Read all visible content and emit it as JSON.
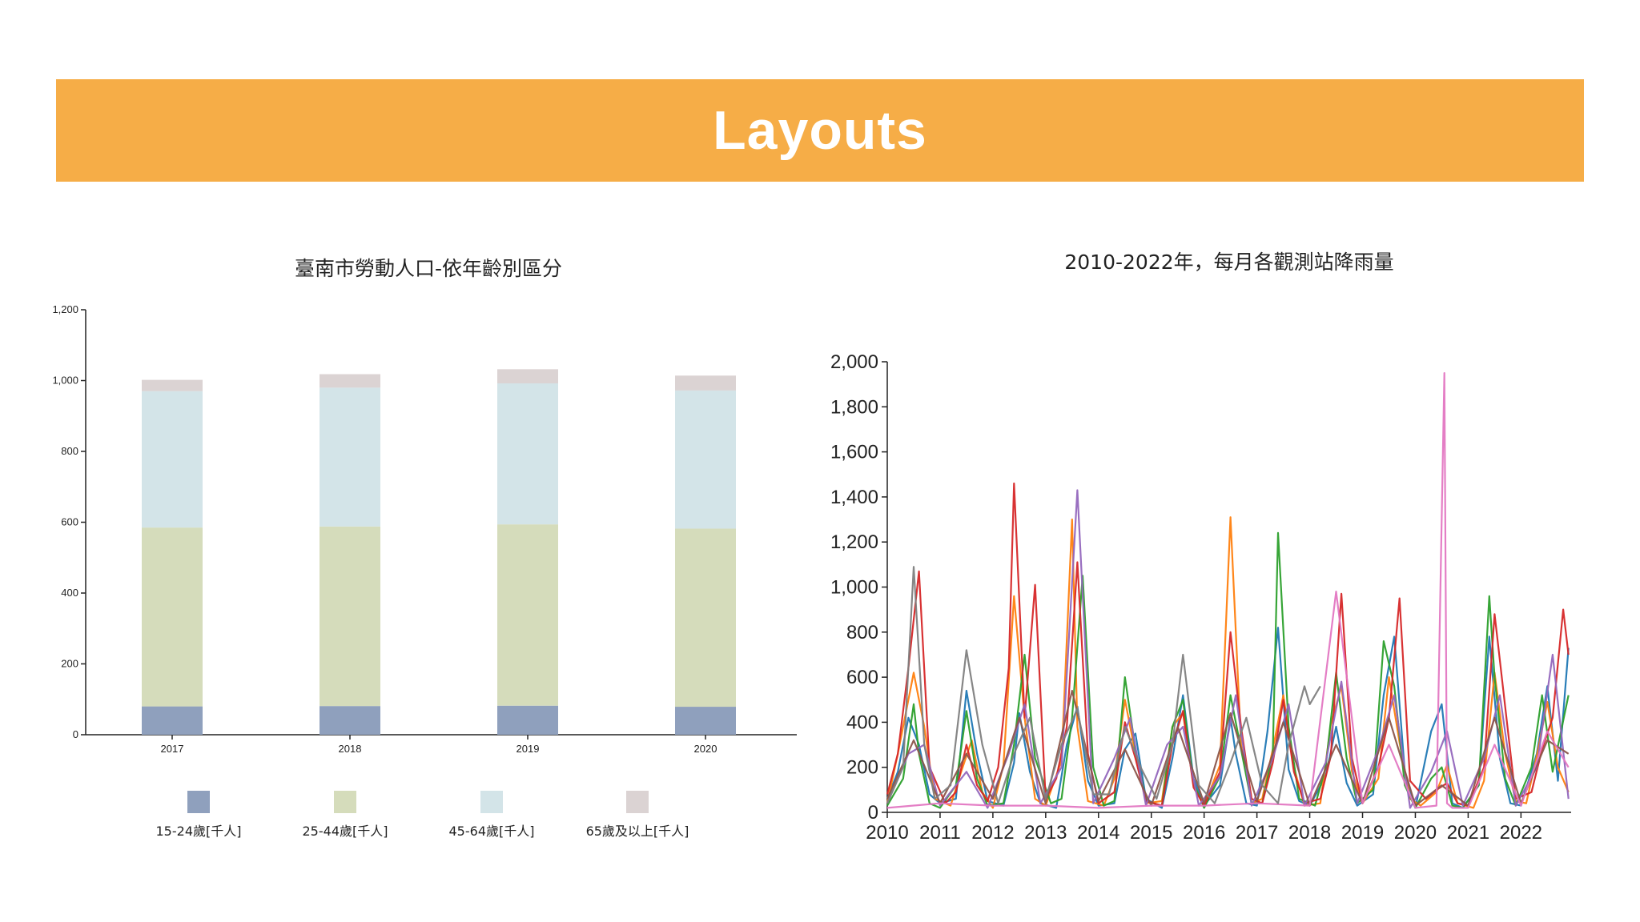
{
  "slide": {
    "title": "Layouts",
    "banner_color": "#f6ad47"
  },
  "chart_data": [
    {
      "type": "bar",
      "stacked": true,
      "title": "臺南市勞動人口-依年齡別區分",
      "xlabel": "",
      "ylabel": "",
      "categories": [
        "2017",
        "2018",
        "2019",
        "2020"
      ],
      "ylim": [
        0,
        1200
      ],
      "yticks": [
        0,
        200,
        400,
        600,
        800,
        1000,
        1200
      ],
      "ytick_labels": [
        "0",
        "200",
        "400",
        "600",
        "800",
        "1,000",
        "1,200"
      ],
      "legend_position": "bottom",
      "series": [
        {
          "name": "15-24歲[千人]",
          "color": "#8fa0bd",
          "values": [
            80,
            81,
            82,
            79
          ]
        },
        {
          "name": "25-44歲[千人]",
          "color": "#d5dcbb",
          "values": [
            505,
            507,
            512,
            503
          ]
        },
        {
          "name": "45-64歲[千人]",
          "color": "#d3e4e8",
          "values": [
            385,
            392,
            398,
            390
          ]
        },
        {
          "name": "65歲及以上[千人]",
          "color": "#dbd3d3",
          "values": [
            32,
            38,
            40,
            42
          ]
        }
      ]
    },
    {
      "type": "line",
      "title": "2010-2022年，每月各觀測站降雨量",
      "xlabel": "",
      "ylabel": "",
      "xlim": [
        2010,
        2022.95
      ],
      "ylim": [
        0,
        2000
      ],
      "xticks": [
        "2010",
        "2011",
        "2012",
        "2013",
        "2014",
        "2015",
        "2016",
        "2017",
        "2018",
        "2019",
        "2020",
        "2021",
        "2022"
      ],
      "yticks": [
        0,
        200,
        400,
        600,
        800,
        1000,
        1200,
        1400,
        1600,
        1800,
        2000
      ],
      "ytick_labels": [
        "0",
        "200",
        "400",
        "600",
        "800",
        "1,000",
        "1,200",
        "1,400",
        "1,600",
        "1,800",
        "2,000"
      ],
      "grid": false,
      "legend": "none",
      "series": [
        {
          "color": "#1f77b4",
          "x": [
            2010.0,
            2010.2,
            2010.4,
            2010.6,
            2010.8,
            2011.0,
            2011.3,
            2011.5,
            2011.7,
            2011.9,
            2012.2,
            2012.4,
            2012.5,
            2012.7,
            2012.9,
            2013.2,
            2013.4,
            2013.6,
            2013.8,
            2014.0,
            2014.3,
            2014.5,
            2014.7,
            2014.9,
            2015.2,
            2015.4,
            2015.6,
            2015.8,
            2016.0,
            2016.3,
            2016.5,
            2016.6,
            2016.8,
            2017.0,
            2017.2,
            2017.4,
            2017.6,
            2017.8,
            2018.0,
            2018.3,
            2018.5,
            2018.7,
            2018.9,
            2019.2,
            2019.4,
            2019.6,
            2019.8,
            2020.0,
            2020.3,
            2020.5,
            2020.7,
            2020.9,
            2021.2,
            2021.4,
            2021.6,
            2021.8,
            2022.0,
            2022.3,
            2022.5,
            2022.7,
            2022.9
          ],
          "y": [
            60,
            180,
            420,
            300,
            80,
            40,
            60,
            540,
            260,
            50,
            30,
            220,
            440,
            180,
            40,
            20,
            300,
            470,
            140,
            30,
            40,
            280,
            350,
            60,
            20,
            240,
            520,
            150,
            30,
            120,
            420,
            260,
            40,
            30,
            360,
            820,
            190,
            50,
            30,
            160,
            380,
            130,
            30,
            80,
            520,
            780,
            180,
            20,
            360,
            480,
            40,
            20,
            120,
            780,
            240,
            40,
            30,
            260,
            560,
            140,
            730
          ]
        },
        {
          "color": "#ff7f0e",
          "x": [
            2010.0,
            2010.2,
            2010.5,
            2010.7,
            2010.9,
            2011.2,
            2011.4,
            2011.6,
            2011.8,
            2012.0,
            2012.2,
            2012.4,
            2012.6,
            2012.8,
            2013.0,
            2013.3,
            2013.5,
            2013.6,
            2013.8,
            2014.1,
            2014.3,
            2014.5,
            2014.7,
            2014.9,
            2015.2,
            2015.4,
            2015.6,
            2015.8,
            2016.0,
            2016.3,
            2016.5,
            2016.7,
            2016.9,
            2017.1,
            2017.3,
            2017.5,
            2017.7,
            2017.9,
            2018.2,
            2018.4,
            2018.6,
            2018.8,
            2019.0,
            2019.3,
            2019.5,
            2019.7,
            2019.9,
            2020.1,
            2020.4,
            2020.6,
            2020.8,
            2021.1,
            2021.3,
            2021.5,
            2021.7,
            2021.9,
            2022.1,
            2022.3,
            2022.5,
            2022.7,
            2022.9
          ],
          "y": [
            40,
            260,
            620,
            380,
            60,
            30,
            180,
            320,
            90,
            20,
            210,
            960,
            420,
            60,
            30,
            230,
            1300,
            380,
            50,
            30,
            150,
            500,
            260,
            40,
            50,
            380,
            440,
            120,
            30,
            210,
            1310,
            300,
            40,
            60,
            280,
            520,
            200,
            30,
            40,
            390,
            560,
            180,
            40,
            150,
            600,
            310,
            60,
            30,
            90,
            210,
            40,
            20,
            140,
            620,
            260,
            50,
            40,
            250,
            490,
            200,
            90
          ]
        },
        {
          "color": "#2ca02c",
          "x": [
            2010.0,
            2010.3,
            2010.5,
            2010.6,
            2010.8,
            2011.0,
            2011.3,
            2011.5,
            2011.7,
            2011.9,
            2012.2,
            2012.4,
            2012.6,
            2012.8,
            2013.1,
            2013.3,
            2013.5,
            2013.7,
            2013.9,
            2014.1,
            2014.3,
            2014.5,
            2014.7,
            2014.9,
            2015.2,
            2015.4,
            2015.6,
            2015.8,
            2016.0,
            2016.3,
            2016.5,
            2016.7,
            2016.9,
            2017.1,
            2017.3,
            2017.4,
            2017.6,
            2017.8,
            2018.1,
            2018.3,
            2018.5,
            2018.7,
            2018.9,
            2019.2,
            2019.4,
            2019.6,
            2019.8,
            2020.0,
            2020.3,
            2020.5,
            2020.7,
            2020.9,
            2021.2,
            2021.4,
            2021.5,
            2021.7,
            2021.9,
            2022.2,
            2022.4,
            2022.6,
            2022.9
          ],
          "y": [
            30,
            150,
            480,
            260,
            40,
            20,
            120,
            450,
            150,
            30,
            40,
            300,
            700,
            240,
            40,
            60,
            420,
            1050,
            200,
            30,
            50,
            600,
            280,
            50,
            30,
            380,
            500,
            130,
            20,
            160,
            520,
            280,
            40,
            40,
            260,
            1240,
            380,
            60,
            30,
            200,
            620,
            240,
            40,
            100,
            760,
            560,
            120,
            20,
            150,
            200,
            30,
            20,
            120,
            960,
            600,
            150,
            30,
            200,
            520,
            180,
            520
          ]
        },
        {
          "color": "#d62728",
          "x": [
            2010.0,
            2010.2,
            2010.4,
            2010.6,
            2010.8,
            2011.1,
            2011.3,
            2011.5,
            2011.7,
            2011.9,
            2012.1,
            2012.3,
            2012.4,
            2012.6,
            2012.8,
            2013.0,
            2013.2,
            2013.4,
            2013.6,
            2013.8,
            2014.0,
            2014.3,
            2014.5,
            2014.7,
            2014.9,
            2015.2,
            2015.4,
            2015.6,
            2015.8,
            2016.0,
            2016.3,
            2016.5,
            2016.7,
            2016.9,
            2017.1,
            2017.3,
            2017.5,
            2017.7,
            2017.9,
            2018.2,
            2018.4,
            2018.6,
            2018.8,
            2019.0,
            2019.3,
            2019.5,
            2019.7,
            2019.9,
            2020.2,
            2020.4,
            2020.6,
            2020.8,
            2021.0,
            2021.3,
            2021.5,
            2021.7,
            2021.9,
            2022.2,
            2022.4,
            2022.6,
            2022.8,
            2022.9
          ],
          "y": [
            80,
            260,
            640,
            1070,
            200,
            40,
            90,
            300,
            120,
            50,
            200,
            640,
            1460,
            420,
            1010,
            60,
            150,
            380,
            1110,
            260,
            40,
            90,
            400,
            240,
            50,
            30,
            300,
            450,
            110,
            30,
            180,
            800,
            380,
            60,
            40,
            220,
            500,
            180,
            40,
            60,
            250,
            970,
            240,
            40,
            200,
            420,
            950,
            140,
            60,
            100,
            130,
            40,
            30,
            200,
            880,
            470,
            60,
            90,
            280,
            420,
            900,
            700
          ]
        },
        {
          "color": "#9467bd",
          "x": [
            2010.0,
            2010.4,
            2010.7,
            2011.0,
            2011.5,
            2011.9,
            2012.3,
            2012.6,
            2012.9,
            2013.3,
            2013.6,
            2013.9,
            2014.3,
            2014.6,
            2014.9,
            2015.3,
            2015.6,
            2015.9,
            2016.3,
            2016.6,
            2016.9,
            2017.3,
            2017.6,
            2017.9,
            2018.3,
            2018.6,
            2018.9,
            2019.3,
            2019.6,
            2019.9,
            2020.3,
            2020.6,
            2020.9,
            2021.3,
            2021.6,
            2021.9,
            2022.3,
            2022.6,
            2022.9
          ],
          "y": [
            40,
            260,
            300,
            30,
            180,
            20,
            260,
            480,
            40,
            200,
            1430,
            40,
            240,
            420,
            30,
            300,
            380,
            30,
            160,
            520,
            30,
            240,
            480,
            30,
            220,
            580,
            40,
            280,
            520,
            20,
            180,
            360,
            30,
            240,
            520,
            30,
            200,
            700,
            60
          ]
        },
        {
          "color": "#8c564b",
          "x": [
            2010.0,
            2010.5,
            2011.0,
            2011.5,
            2012.0,
            2012.5,
            2013.0,
            2013.5,
            2014.0,
            2014.5,
            2015.0,
            2015.5,
            2016.0,
            2016.5,
            2017.0,
            2017.5,
            2018.0,
            2018.5,
            2019.0,
            2019.5,
            2020.0,
            2020.5,
            2021.0,
            2021.5,
            2022.0,
            2022.5,
            2022.9
          ],
          "y": [
            60,
            320,
            40,
            260,
            60,
            420,
            40,
            540,
            50,
            280,
            30,
            380,
            40,
            440,
            50,
            400,
            30,
            300,
            40,
            420,
            30,
            120,
            30,
            420,
            40,
            320,
            260
          ]
        },
        {
          "color": "#e377c2",
          "x": [
            2010.0,
            2011.0,
            2012.0,
            2013.0,
            2014.0,
            2015.0,
            2016.0,
            2017.0,
            2018.0,
            2018.5,
            2019.0,
            2019.5,
            2020.0,
            2020.4,
            2020.55,
            2020.6,
            2020.7,
            2021.0,
            2021.5,
            2022.0,
            2022.5,
            2022.9
          ],
          "y": [
            20,
            40,
            30,
            30,
            20,
            30,
            30,
            40,
            30,
            980,
            40,
            300,
            20,
            30,
            1950,
            40,
            20,
            20,
            300,
            30,
            360,
            200
          ]
        },
        {
          "color": "#7f7f7f",
          "x": [
            2010.0,
            2010.3,
            2010.5,
            2010.7,
            2010.9,
            2011.2,
            2011.5,
            2011.8,
            2012.1,
            2012.4,
            2012.7,
            2013.0,
            2013.3,
            2013.6,
            2013.9,
            2014.2,
            2014.5,
            2014.8,
            2015.1,
            2015.4,
            2015.6,
            2015.9,
            2016.2,
            2016.5,
            2016.8,
            2017.1,
            2017.4,
            2017.6,
            2017.9,
            2018.0,
            2018.2
          ],
          "y": [
            40,
            200,
            1090,
            300,
            60,
            120,
            720,
            300,
            40,
            260,
            420,
            60,
            300,
            460,
            80,
            80,
            380,
            200,
            60,
            300,
            700,
            120,
            40,
            220,
            420,
            120,
            40,
            300,
            560,
            480,
            560
          ]
        }
      ]
    }
  ]
}
